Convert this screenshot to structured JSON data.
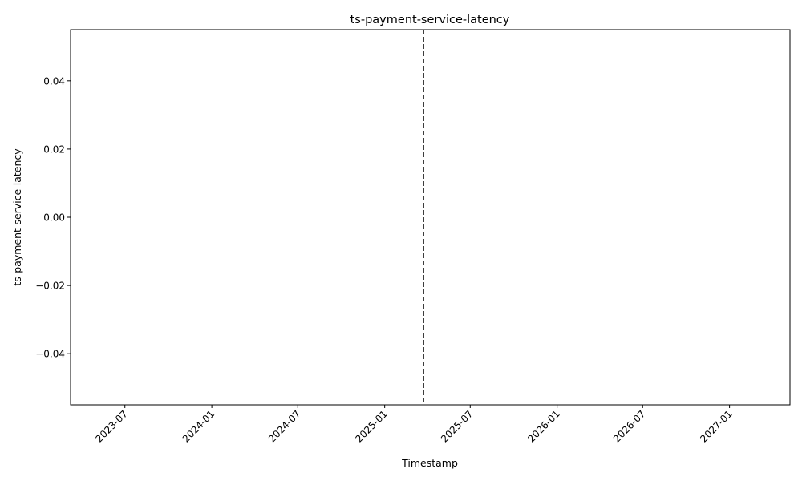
{
  "chart_data": {
    "type": "line",
    "title": "ts-payment-service-latency",
    "xlabel": "Timestamp",
    "ylabel": "ts-payment-service-latency",
    "x_scale": "date",
    "xlim": [
      "2023-03-08",
      "2027-05-09"
    ],
    "ylim": [
      -0.055,
      0.055
    ],
    "x_ticks": [
      "2023-07-01",
      "2024-01-01",
      "2024-07-01",
      "2025-01-01",
      "2025-07-01",
      "2026-01-01",
      "2026-07-01",
      "2027-01-01"
    ],
    "x_tick_labels": [
      "2023-07",
      "2024-01",
      "2024-07",
      "2025-01",
      "2025-07",
      "2026-01",
      "2026-07",
      "2027-01"
    ],
    "y_ticks": [
      -0.04,
      -0.02,
      0.0,
      0.02,
      0.04
    ],
    "y_tick_labels": [
      "−0.04",
      "−0.02",
      "0.00",
      "0.02",
      "0.04"
    ],
    "series": [],
    "vertical_lines": [
      {
        "x": "2025-03-24",
        "style": "dashed",
        "color": "#000000"
      }
    ],
    "grid": false,
    "legend": "none"
  }
}
